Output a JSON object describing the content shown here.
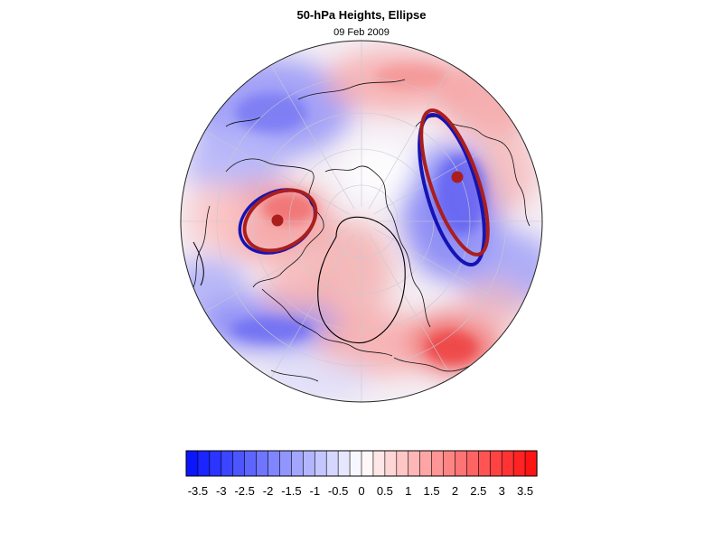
{
  "title": "50-hPa Heights, Ellipse",
  "subtitle": "09 Feb 2009",
  "projection": "north-polar-stereographic",
  "colorbar": {
    "min": -3.75,
    "max": 3.75,
    "step": 0.25,
    "tick_labels": [
      "-3.5",
      "-3",
      "-2.5",
      "-2",
      "-1.5",
      "-1",
      "-0.5",
      "0",
      "0.5",
      "1",
      "1.5",
      "2",
      "2.5",
      "3",
      "3.5"
    ],
    "tick_values": [
      -3.5,
      -3,
      -2.5,
      -2,
      -1.5,
      -1,
      -0.5,
      0,
      0.5,
      1,
      1.5,
      2,
      2.5,
      3,
      3.5
    ],
    "low_color": "#0b16ff",
    "mid_color": "#ffffff",
    "high_color": "#ff1414"
  },
  "ellipse_colors": {
    "red": "#aa1e1e",
    "blue": "#1414b4"
  }
}
